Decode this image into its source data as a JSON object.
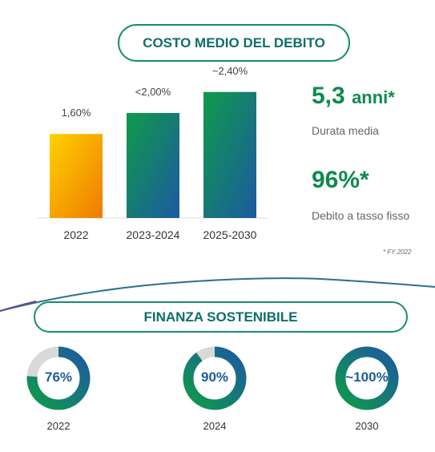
{
  "header": {
    "title": "COSTO MEDIO DEL DEBITO"
  },
  "chart_data": [
    {
      "type": "bar",
      "title": "COSTO MEDIO DEL DEBITO",
      "categories": [
        "2022",
        "2023-2024",
        "2025-2030"
      ],
      "values": [
        1.6,
        2.0,
        2.4
      ],
      "value_labels": [
        "1,60%",
        "<2,00%",
        "~2,40%"
      ],
      "ylim": [
        0,
        2.9
      ],
      "grid": false,
      "colors": [
        "#f39c12",
        "#1a8c6e",
        "#1a8c6e"
      ]
    },
    {
      "type": "pie",
      "title": "FINANZA SOSTENIBILE",
      "categories": [
        "2022",
        "2024",
        "2030"
      ],
      "values": [
        76,
        90,
        100
      ],
      "value_labels": [
        "76%",
        "90%",
        "~100%"
      ]
    }
  ],
  "kpis": [
    {
      "value": "5,3",
      "unit": "anni*",
      "label": "Durata media"
    },
    {
      "value": "96%*",
      "label": "Debito a tasso fisso"
    }
  ],
  "footnote": "* FY 2022",
  "section2": {
    "title": "FINANZA SOSTENIBILE"
  },
  "colors": {
    "green": "#0f8a4e",
    "blue": "#1d5c9a",
    "orange": "#f08a00",
    "yellow": "#ffd200",
    "track": "#d9d9d9"
  }
}
